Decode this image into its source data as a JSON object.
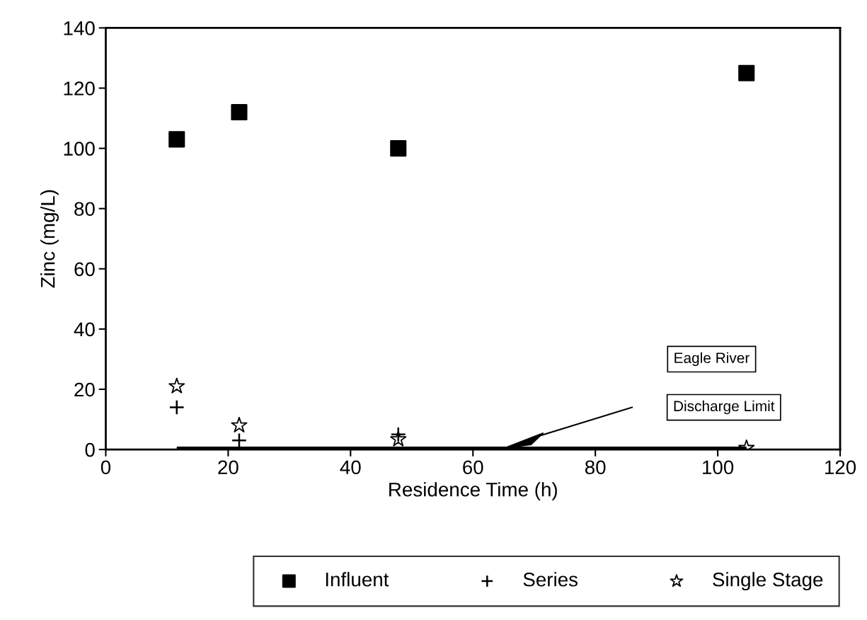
{
  "chart_data": {
    "type": "scatter",
    "xlabel": "Residence Time (h)",
    "ylabel": "Zinc (mg/L)",
    "xlim": [
      0,
      120
    ],
    "xticks": [
      0,
      20,
      40,
      60,
      80,
      100,
      120
    ],
    "ylim": [
      0,
      140
    ],
    "yticks": [
      0,
      20,
      40,
      60,
      80,
      100,
      120,
      140
    ],
    "x": [
      11.6,
      21.8,
      47.8,
      104.7
    ],
    "series": [
      {
        "name": "Influent",
        "color": "#000000",
        "marker": "square",
        "values": [
          103,
          112,
          100,
          125
        ]
      },
      {
        "name": "Series",
        "color": "#000000",
        "marker": "cross",
        "values": [
          14,
          3,
          5,
          null
        ]
      },
      {
        "name": "Single Stage",
        "color": "#000000",
        "marker": "star",
        "values": [
          21,
          8,
          3.4,
          0.5
        ]
      },
      {
        "type": "line",
        "color": "#000000",
        "x": [
          11.6,
          104.7
        ],
        "values": [
          0.3,
          0.3
        ]
      }
    ],
    "annotations": [
      "Eagle River",
      "Discharge Limit"
    ],
    "legend": "bottom",
    "grid": false
  }
}
